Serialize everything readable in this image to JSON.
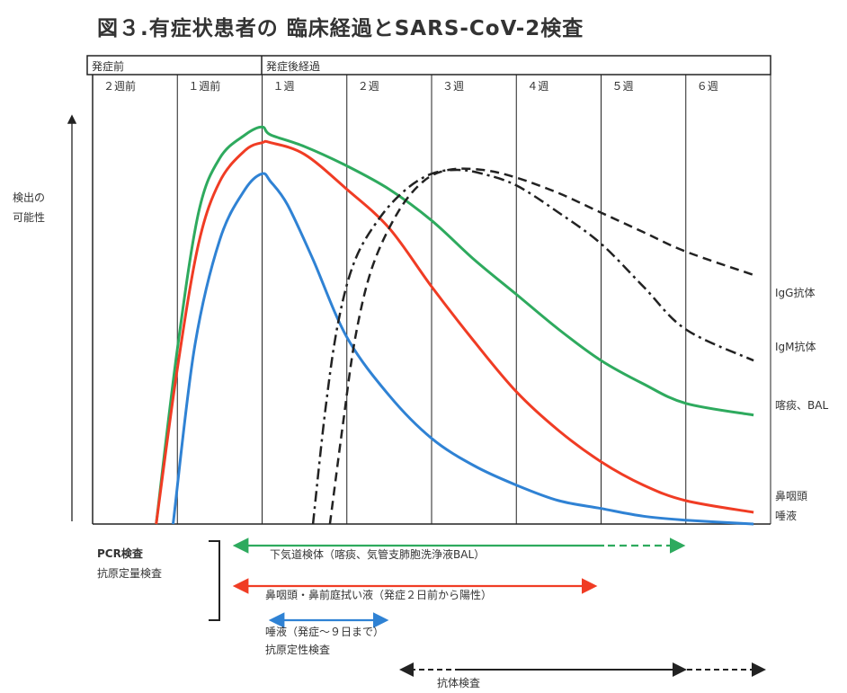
{
  "title": "図３.有症状患者の 臨床経過とSARS-CoV-2検査",
  "chart_data": {
    "type": "line",
    "title": "図３.有症状患者の 臨床経過とSARS-CoV-2検査",
    "ylabel": "検出の可能性",
    "xlabel": "",
    "header_groups": [
      "発症前",
      "発症後経過"
    ],
    "categories": [
      "２週前",
      "１週前",
      "１週",
      "２週",
      "３週",
      "４週",
      "５週",
      "６週"
    ],
    "xlim": [
      -2,
      6
    ],
    "ylim": [
      0,
      1
    ],
    "grid": true,
    "series": [
      {
        "name": "喀痰、BAL",
        "color": "#2eaa5e",
        "dash": "solid",
        "x": [
          -1.25,
          -1.0,
          -0.75,
          -0.5,
          -0.2,
          0,
          0.1,
          0.5,
          1.0,
          1.5,
          2.0,
          2.5,
          3.0,
          3.5,
          4.0,
          4.5,
          5.0,
          5.8
        ],
        "y": [
          0.0,
          0.45,
          0.8,
          0.94,
          1.0,
          1.02,
          1.0,
          0.97,
          0.92,
          0.86,
          0.78,
          0.68,
          0.59,
          0.5,
          0.42,
          0.36,
          0.31,
          0.28
        ]
      },
      {
        "name": "鼻咽頭\n唾液",
        "color": "#f03c24",
        "dash": "solid",
        "x": [
          -1.25,
          -1.0,
          -0.75,
          -0.5,
          -0.2,
          0,
          0.1,
          0.5,
          1.0,
          1.5,
          2.0,
          2.5,
          3.0,
          3.5,
          4.0,
          4.5,
          5.0,
          5.8
        ],
        "y": [
          0.0,
          0.4,
          0.72,
          0.88,
          0.96,
          0.98,
          0.98,
          0.95,
          0.86,
          0.76,
          0.61,
          0.47,
          0.34,
          0.24,
          0.16,
          0.1,
          0.06,
          0.03
        ]
      },
      {
        "name": "鼻咽頭 唾液 (青)",
        "color": "#2f82d4",
        "dash": "solid",
        "x": [
          -1.05,
          -0.8,
          -0.5,
          -0.2,
          0,
          0.1,
          0.3,
          0.6,
          1.0,
          1.5,
          2.0,
          2.5,
          3.0,
          3.5,
          4.0,
          4.5,
          5.0,
          5.8
        ],
        "y": [
          0.0,
          0.45,
          0.73,
          0.86,
          0.9,
          0.88,
          0.82,
          0.68,
          0.48,
          0.33,
          0.22,
          0.15,
          0.1,
          0.06,
          0.04,
          0.02,
          0.01,
          0.0
        ]
      },
      {
        "name": "IgG抗体",
        "color": "#222222",
        "dash": "dash",
        "x": [
          0.8,
          0.95,
          1.1,
          1.3,
          1.6,
          1.9,
          2.2,
          2.6,
          3.0,
          3.5,
          4.0,
          4.5,
          5.0,
          5.8
        ],
        "y": [
          0.0,
          0.25,
          0.48,
          0.66,
          0.8,
          0.88,
          0.91,
          0.91,
          0.89,
          0.85,
          0.8,
          0.75,
          0.7,
          0.64
        ]
      },
      {
        "name": "IgM抗体",
        "color": "#222222",
        "dash": "dashdot",
        "x": [
          0.6,
          0.75,
          0.9,
          1.1,
          1.4,
          1.7,
          2.0,
          2.3,
          2.6,
          3.0,
          3.5,
          4.0,
          4.5,
          5.0,
          5.8
        ],
        "y": [
          0.0,
          0.3,
          0.52,
          0.68,
          0.79,
          0.86,
          0.9,
          0.91,
          0.9,
          0.87,
          0.8,
          0.72,
          0.61,
          0.5,
          0.42
        ]
      }
    ],
    "series_labels": [
      "IgG抗体",
      "IgM抗体",
      "喀痰、BAL",
      "鼻咽頭",
      "唾液"
    ],
    "tests": {
      "group_label_1": "PCR検査",
      "group_label_2": "抗原定量検査",
      "green_label": "下気道検体（喀痰、気管支肺胞洗浄液BAL）",
      "red_label": "鼻咽頭・鼻前庭拭い液（発症２日前から陽性）",
      "blue_label": "唾液（発症～９日まで）",
      "qual_label": "抗原定性検査",
      "antibody_label": "抗体検査"
    }
  }
}
